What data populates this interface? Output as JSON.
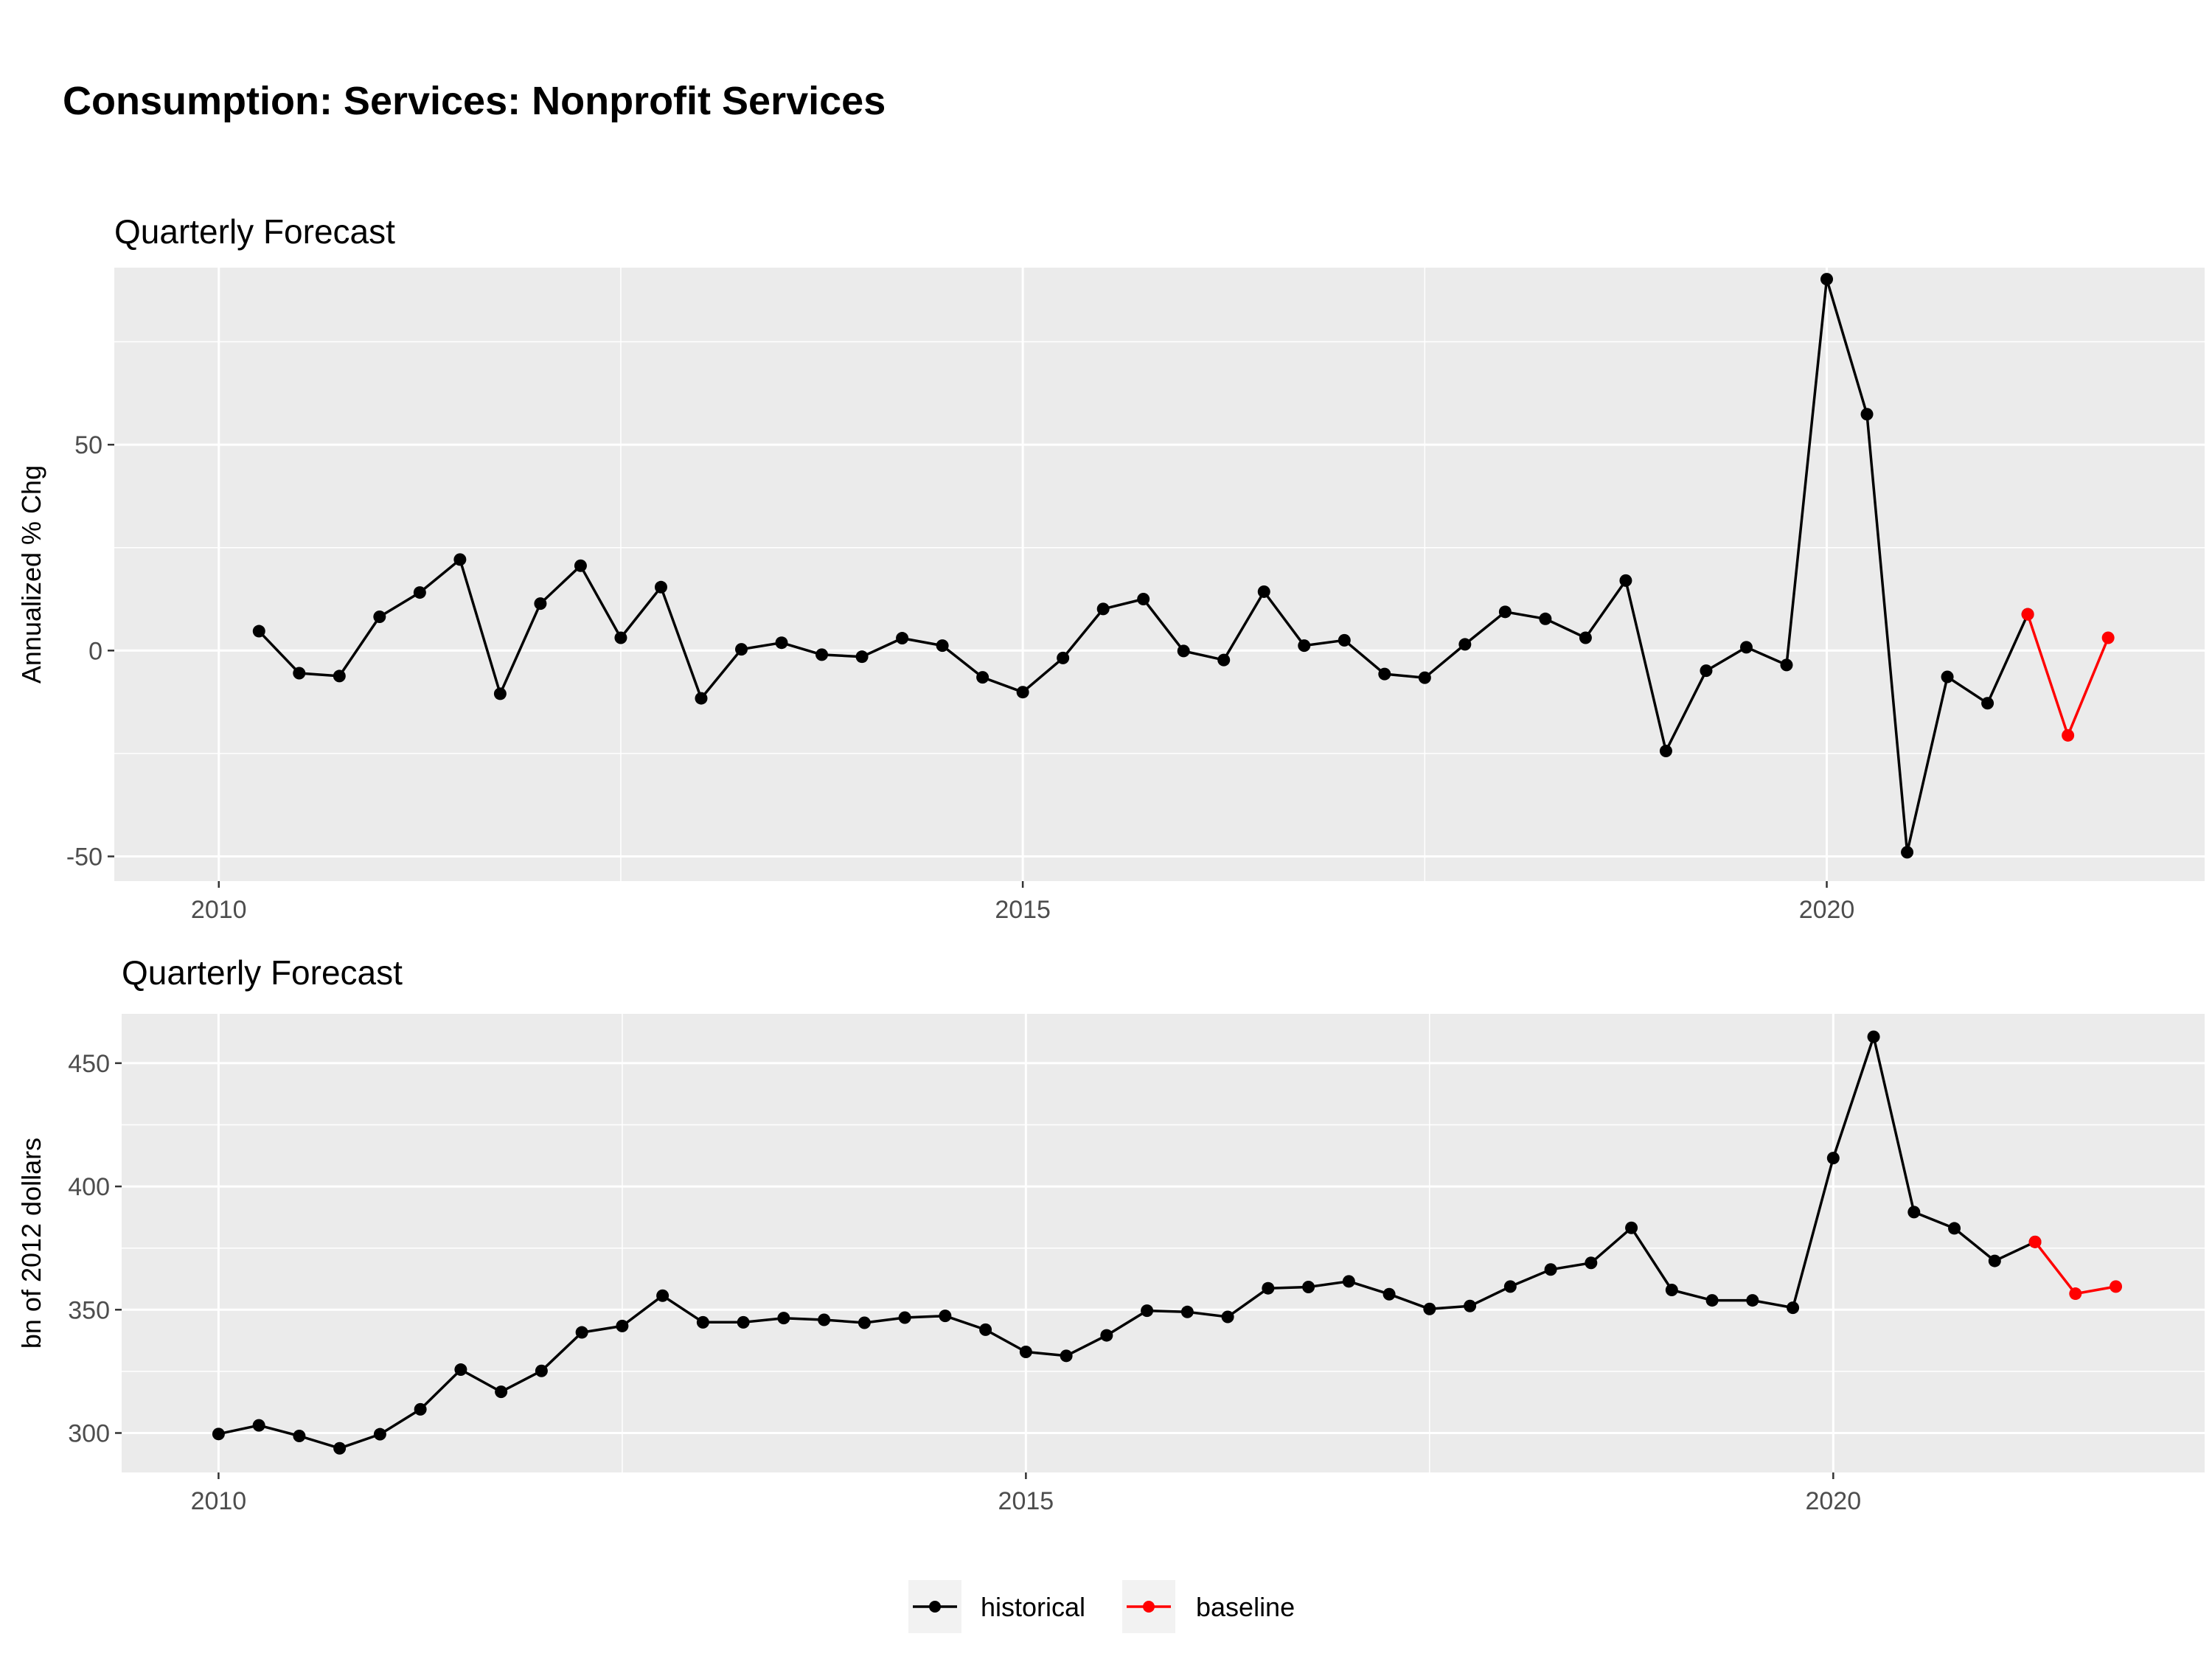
{
  "figure": {
    "title": "Consumption: Services: Nonprofit Services"
  },
  "legend": {
    "position": "bottom",
    "items": [
      {
        "label": "historical",
        "color": "#000000"
      },
      {
        "label": "baseline",
        "color": "#ff0000"
      }
    ]
  },
  "chart_data": [
    {
      "type": "line",
      "title": "Quarterly Forecast",
      "xlabel": "",
      "ylabel": "Annualized % Chg",
      "xlim": [
        2009.35,
        2022.35
      ],
      "ylim": [
        -56,
        93
      ],
      "x_ticks": [
        2010,
        2015,
        2020
      ],
      "x_tick_labels": [
        "2010",
        "2015",
        "2020"
      ],
      "y_ticks": [
        -50,
        0,
        50
      ],
      "y_tick_labels": [
        "-50",
        "0",
        "50"
      ],
      "grid": true,
      "series": [
        {
          "name": "historical",
          "color": "#000000",
          "x": [
            2010.25,
            2010.5,
            2010.75,
            2011.0,
            2011.25,
            2011.5,
            2011.75,
            2012.0,
            2012.25,
            2012.5,
            2012.75,
            2013.0,
            2013.25,
            2013.5,
            2013.75,
            2014.0,
            2014.25,
            2014.5,
            2014.75,
            2015.0,
            2015.25,
            2015.5,
            2015.75,
            2016.0,
            2016.25,
            2016.5,
            2016.75,
            2017.0,
            2017.25,
            2017.5,
            2017.75,
            2018.0,
            2018.25,
            2018.5,
            2018.75,
            2019.0,
            2019.25,
            2019.5,
            2019.75,
            2020.0,
            2020.25,
            2020.5,
            2020.75,
            2021.0,
            2021.25
          ],
          "y": [
            4.7,
            -5.5,
            -6.2,
            8.2,
            14.1,
            22.1,
            -10.5,
            11.4,
            20.6,
            3.1,
            15.4,
            -11.6,
            0.3,
            1.9,
            -1.0,
            -1.5,
            3.0,
            1.2,
            -6.5,
            -10.1,
            -1.8,
            10.1,
            12.5,
            -0.1,
            -2.3,
            14.3,
            1.2,
            2.5,
            -5.7,
            -6.6,
            1.5,
            9.4,
            7.7,
            3.1,
            17.0,
            -24.4,
            -4.9,
            0.8,
            -3.5,
            90.2,
            57.4,
            -49.0,
            -6.4,
            -12.8,
            8.8
          ]
        },
        {
          "name": "baseline",
          "color": "#ff0000",
          "x": [
            2021.25,
            2021.5,
            2021.75
          ],
          "y": [
            8.8,
            -20.6,
            3.1
          ]
        }
      ]
    },
    {
      "type": "line",
      "title": "Quarterly Forecast",
      "xlabel": "",
      "ylabel": "bn of 2012 dollars",
      "xlim": [
        2009.4,
        2022.3
      ],
      "ylim": [
        284,
        470
      ],
      "x_ticks": [
        2010,
        2015,
        2020
      ],
      "x_tick_labels": [
        "2010",
        "2015",
        "2020"
      ],
      "y_ticks": [
        300,
        350,
        400,
        450
      ],
      "y_tick_labels": [
        "300",
        "350",
        "400",
        "450"
      ],
      "grid": true,
      "series": [
        {
          "name": "historical",
          "color": "#000000",
          "x": [
            2010.0,
            2010.25,
            2010.5,
            2010.75,
            2011.0,
            2011.25,
            2011.5,
            2011.75,
            2012.0,
            2012.25,
            2012.5,
            2012.75,
            2013.0,
            2013.25,
            2013.5,
            2013.75,
            2014.0,
            2014.25,
            2014.5,
            2014.75,
            2015.0,
            2015.25,
            2015.5,
            2015.75,
            2016.0,
            2016.25,
            2016.5,
            2016.75,
            2017.0,
            2017.25,
            2017.5,
            2017.75,
            2018.0,
            2018.25,
            2018.5,
            2018.75,
            2019.0,
            2019.25,
            2019.5,
            2019.75,
            2020.0,
            2020.25,
            2020.5,
            2020.75,
            2021.0,
            2021.25
          ],
          "y": [
            299.6,
            303.1,
            298.8,
            293.8,
            299.5,
            309.6,
            325.7,
            316.7,
            325.2,
            340.8,
            343.4,
            355.7,
            344.9,
            344.9,
            346.6,
            345.9,
            344.7,
            346.8,
            347.5,
            341.9,
            332.9,
            331.3,
            339.6,
            349.6,
            349.1,
            347.1,
            358.7,
            359.2,
            361.5,
            356.3,
            350.3,
            351.5,
            359.4,
            366.3,
            369.0,
            383.2,
            358.0,
            353.8,
            353.8,
            350.8,
            411.5,
            460.7,
            389.6,
            383.0,
            369.8,
            377.5
          ]
        },
        {
          "name": "baseline",
          "color": "#ff0000",
          "x": [
            2021.25,
            2021.5,
            2021.75
          ],
          "y": [
            377.5,
            356.5,
            359.4
          ]
        }
      ]
    }
  ]
}
